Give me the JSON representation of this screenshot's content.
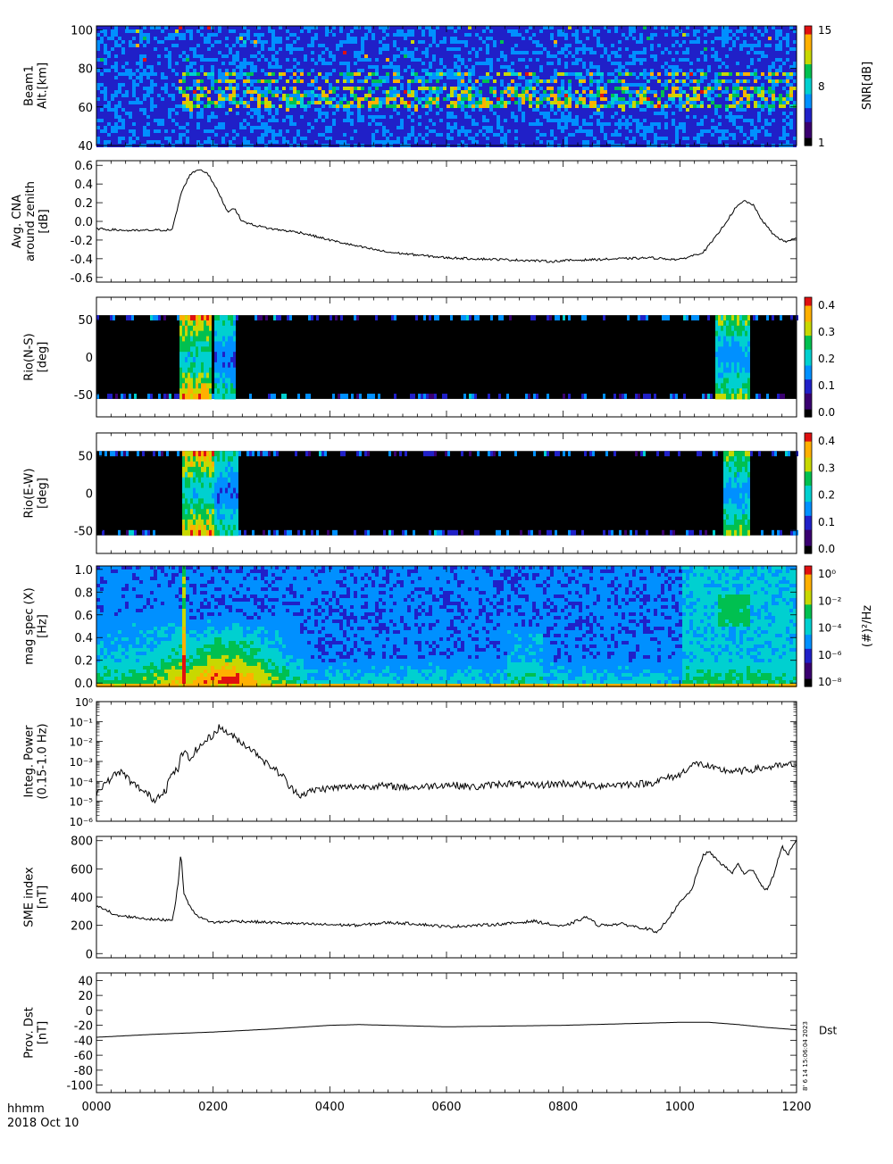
{
  "x_axis": {
    "label_top": "hhmm",
    "label_bottom": "2018 Oct 10",
    "range": [
      0,
      1200
    ],
    "ticks": [
      0,
      200,
      400,
      600,
      800,
      1000,
      1200
    ],
    "tick_labels": [
      "0000",
      "0200",
      "0400",
      "0600",
      "0800",
      "1000",
      "1200"
    ]
  },
  "colors": {
    "line": "#000000",
    "spectrogram": [
      "#000000",
      "#3a0070",
      "#2020c8",
      "#0090ff",
      "#00d0d0",
      "#00c050",
      "#c8d800",
      "#ffb000",
      "#e01010"
    ]
  },
  "chart_data": [
    {
      "type": "heatmap",
      "ylabel": [
        "Beam1",
        "Alt.[km]"
      ],
      "ylim": [
        40,
        102
      ],
      "yticks": [
        40,
        60,
        80,
        100
      ],
      "colorbar": {
        "label": "SNR[dB]",
        "ticks": [
          "1",
          "8",
          "15"
        ]
      },
      "layers_km": [
        62,
        66,
        70,
        74,
        78
      ],
      "enhanced_intervals": [
        [
          135,
          1200
        ]
      ],
      "grid": false
    },
    {
      "type": "line",
      "ylabel": [
        "Avg. CNA",
        "around zenith",
        "[dB]"
      ],
      "ylim": [
        -0.65,
        0.65
      ],
      "yticks": [
        0.6,
        0.4,
        0.2,
        0.0,
        -0.2,
        -0.4,
        -0.6
      ],
      "ytick_labels": [
        "0.6",
        "0.4",
        "0.2",
        "0.0",
        "-0.2",
        "-0.4",
        "-0.6"
      ],
      "x": [
        0,
        60,
        130,
        145,
        160,
        175,
        190,
        210,
        225,
        235,
        250,
        270,
        300,
        350,
        400,
        450,
        500,
        550,
        600,
        650,
        700,
        750,
        780,
        800,
        850,
        900,
        950,
        1000,
        1040,
        1060,
        1080,
        1095,
        1110,
        1125,
        1140,
        1160,
        1180,
        1200
      ],
      "y": [
        -0.08,
        -0.1,
        -0.09,
        0.3,
        0.5,
        0.56,
        0.52,
        0.3,
        0.1,
        0.15,
        0.0,
        -0.04,
        -0.08,
        -0.12,
        -0.2,
        -0.27,
        -0.33,
        -0.36,
        -0.39,
        -0.4,
        -0.41,
        -0.42,
        -0.43,
        -0.42,
        -0.41,
        -0.4,
        -0.39,
        -0.41,
        -0.33,
        -0.18,
        0.0,
        0.14,
        0.22,
        0.18,
        0.02,
        -0.14,
        -0.22,
        -0.18
      ],
      "grid": false
    },
    {
      "type": "heatmap",
      "ylabel": [
        "Rio(N-S)",
        "[deg]"
      ],
      "ylim": [
        -80,
        80
      ],
      "yticks": [
        -50,
        0,
        50
      ],
      "ytick_labels": [
        "-50",
        "0",
        "50"
      ],
      "colorbar": {
        "ticks": [
          "0.0",
          "0.1",
          "0.2",
          "0.3",
          "0.4"
        ]
      },
      "data_band_deg": [
        -56,
        56
      ],
      "events": [
        {
          "x": [
            140,
            195
          ],
          "level": 0.45
        },
        {
          "x": [
            200,
            235
          ],
          "level": 0.3
        },
        {
          "x": [
            1060,
            1120
          ],
          "level": 0.35
        }
      ],
      "grid": false
    },
    {
      "type": "heatmap",
      "ylabel": [
        "Rio(E-W)",
        "[deg]"
      ],
      "ylim": [
        -80,
        80
      ],
      "yticks": [
        -50,
        0,
        50
      ],
      "ytick_labels": [
        "-50",
        "0",
        "50"
      ],
      "colorbar": {
        "ticks": [
          "0.0",
          "0.1",
          "0.2",
          "0.3",
          "0.4"
        ]
      },
      "data_band_deg": [
        -56,
        56
      ],
      "events": [
        {
          "x": [
            145,
            200
          ],
          "level": 0.45
        },
        {
          "x": [
            200,
            240
          ],
          "level": 0.3
        },
        {
          "x": [
            1070,
            1120
          ],
          "level": 0.35
        }
      ],
      "grid": false
    },
    {
      "type": "heatmap",
      "ylabel": [
        "mag spec (X)",
        "[Hz]"
      ],
      "ylim": [
        -0.03,
        1.03
      ],
      "yticks": [
        0.0,
        0.2,
        0.4,
        0.6,
        0.8,
        1.0
      ],
      "ytick_labels": [
        "0.0",
        "0.2",
        "0.4",
        "0.6",
        "0.8",
        "1.0"
      ],
      "colorbar": {
        "label": "(#)²/Hz",
        "ticks": [
          "10⁻⁸",
          "10⁻⁶",
          "10⁻⁴",
          "10⁻²",
          "10⁰"
        ]
      },
      "enhanced_intervals": [
        [
          0,
          360
        ],
        [
          700,
          760
        ],
        [
          1000,
          1200
        ]
      ],
      "grid": false
    },
    {
      "type": "line",
      "yscale": "log",
      "ylabel": [
        "Integ. Power",
        "(0.15-1.0 Hz)"
      ],
      "ylim": [
        1e-06,
        1
      ],
      "ytick_labels": [
        "10⁻⁶",
        "10⁻⁵",
        "10⁻⁴",
        "10⁻³",
        "10⁻²",
        "10⁻¹",
        "10⁰"
      ],
      "x": [
        0,
        20,
        40,
        60,
        80,
        100,
        120,
        140,
        150,
        160,
        180,
        200,
        210,
        230,
        250,
        270,
        290,
        310,
        330,
        350,
        380,
        420,
        480,
        550,
        600,
        650,
        700,
        750,
        800,
        850,
        900,
        950,
        1000,
        1030,
        1060,
        1100,
        1150,
        1200
      ],
      "y": [
        2e-05,
        0.0001,
        0.0003,
        8e-05,
        3e-05,
        1e-05,
        4e-05,
        0.0004,
        0.003,
        0.001,
        0.006,
        0.02,
        0.05,
        0.02,
        0.008,
        0.003,
        0.0008,
        0.0003,
        5e-05,
        2e-05,
        4e-05,
        5e-05,
        6e-05,
        5e-05,
        7e-05,
        5e-05,
        8e-05,
        6e-05,
        8e-05,
        6e-05,
        7e-05,
        8e-05,
        0.0002,
        0.0008,
        0.0004,
        0.0003,
        0.0005,
        0.0007
      ],
      "grid": false
    },
    {
      "type": "line",
      "ylabel": [
        "SME index",
        "[nT]"
      ],
      "ylim": [
        -30,
        830
      ],
      "yticks": [
        0,
        200,
        400,
        600,
        800
      ],
      "ytick_labels": [
        "0",
        "200",
        "400",
        "600",
        "800"
      ],
      "x": [
        0,
        15,
        30,
        60,
        100,
        130,
        135,
        140,
        145,
        150,
        155,
        165,
        180,
        200,
        240,
        300,
        350,
        400,
        450,
        500,
        550,
        600,
        650,
        700,
        750,
        800,
        840,
        860,
        900,
        950,
        960,
        980,
        1000,
        1020,
        1040,
        1050,
        1070,
        1090,
        1100,
        1110,
        1125,
        1140,
        1150,
        1160,
        1175,
        1185,
        1200
      ],
      "y": [
        330,
        320,
        270,
        260,
        240,
        240,
        350,
        500,
        720,
        420,
        380,
        300,
        250,
        220,
        230,
        220,
        210,
        205,
        200,
        220,
        210,
        190,
        200,
        210,
        230,
        190,
        260,
        200,
        210,
        170,
        140,
        250,
        360,
        450,
        700,
        720,
        640,
        570,
        640,
        560,
        600,
        480,
        450,
        550,
        760,
        700,
        800
      ],
      "grid": false
    },
    {
      "type": "line",
      "ylabel": [
        "Prov. Dst",
        "[nT]"
      ],
      "ylim": [
        -110,
        50
      ],
      "yticks": [
        40,
        20,
        0,
        -20,
        -40,
        -60,
        -80,
        -100
      ],
      "ytick_labels": [
        "40",
        "20",
        "0",
        "-20",
        "-40",
        "-60",
        "-80",
        "-100"
      ],
      "series_label": "Dst",
      "x": [
        0,
        100,
        200,
        300,
        400,
        450,
        500,
        600,
        700,
        800,
        900,
        1000,
        1050,
        1100,
        1150,
        1200
      ],
      "y": [
        -36,
        -32,
        -29,
        -25,
        -20,
        -19,
        -20,
        -22,
        -21,
        -20,
        -18,
        -16,
        -16,
        -19,
        -23,
        -26
      ],
      "grid": false
    }
  ],
  "stamp": "8' 6 14 15:06:04 2023"
}
